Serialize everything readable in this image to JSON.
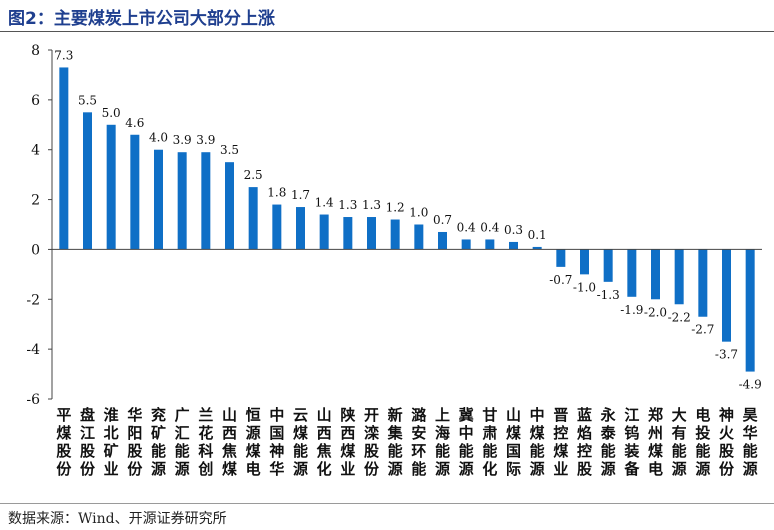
{
  "figure": {
    "title": "图2：主要煤炭上市公司大部分上涨",
    "source": "数据来源：Wind、开源证券研究所"
  },
  "colors": {
    "bar": "#0f6fc6",
    "title": "#1f3f8f",
    "axis": "#444444"
  },
  "chart_data": {
    "type": "bar",
    "categories": [
      "平煤股份",
      "盘江股份",
      "淮北矿业",
      "华阳股份",
      "兖矿能源",
      "广汇能源",
      "兰花科创",
      "山西焦煤",
      "恒源煤电",
      "中国神华",
      "云煤能源",
      "山西焦化",
      "陕西煤业",
      "开滦股份",
      "新集能源",
      "潞安环能",
      "上海能源",
      "冀中能源",
      "甘肃能化",
      "山煤国际",
      "中煤能源",
      "晋控煤业",
      "蓝焰控股",
      "永泰能源",
      "江钨装备",
      "郑州煤电",
      "大有能源",
      "电投能源",
      "神火股份",
      "昊华能源"
    ],
    "values": [
      7.3,
      5.5,
      5.0,
      4.6,
      4.0,
      3.9,
      3.9,
      3.5,
      2.5,
      1.8,
      1.7,
      1.4,
      1.3,
      1.3,
      1.2,
      1.0,
      0.7,
      0.4,
      0.4,
      0.3,
      0.1,
      -0.7,
      -1.0,
      -1.3,
      -1.9,
      -2.0,
      -2.2,
      -2.7,
      -3.7,
      -4.9
    ],
    "data_labels": [
      "7.3",
      "5.5",
      "5.0",
      "4.6",
      "4.0",
      "3.9",
      "3.9",
      "3.5",
      "2.5",
      "1.8",
      "1.7",
      "1.4",
      "1.3",
      "1.3",
      "1.2",
      "1.0",
      "0.7",
      "0.4",
      "0.4",
      "0.3",
      "0.1",
      "-0.7",
      "-1.0",
      "-1.3",
      "-1.9",
      "-2.0",
      "-2.2",
      "-2.7",
      "-3.7",
      "-4.9"
    ],
    "ylim": [
      -6,
      8
    ],
    "yticks": [
      -6,
      -4,
      -2,
      0,
      2,
      4,
      6,
      8
    ],
    "grid": false,
    "title": "",
    "xlabel": "",
    "ylabel": ""
  }
}
